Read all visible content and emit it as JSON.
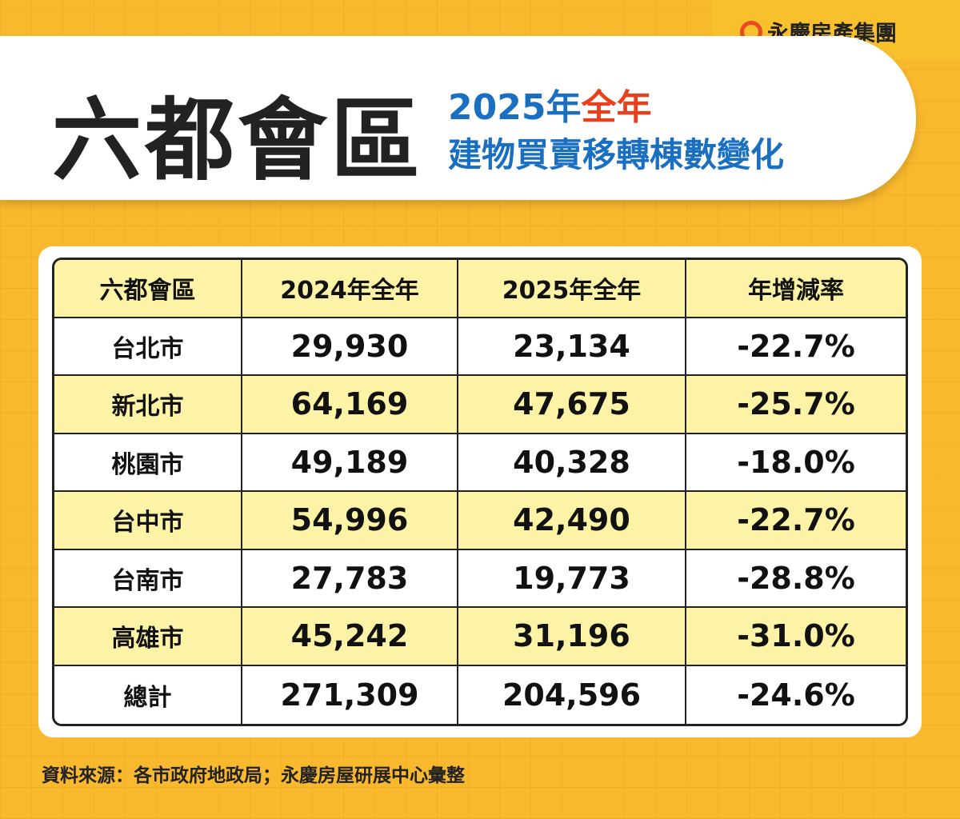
{
  "header": {
    "logo": "永慶房產集團",
    "title": "六都會區",
    "subtitle_year": "2025年",
    "subtitle_highlight": "全年",
    "subtitle_line2": "建物買賣移轉棟數變化"
  },
  "table": {
    "columns": [
      "六都會區",
      "2024年全年",
      "2025年全年",
      "年增減率"
    ],
    "rows": [
      [
        "台北市",
        "29,930",
        "23,134",
        "-22.7%"
      ],
      [
        "新北市",
        "64,169",
        "47,675",
        "-25.7%"
      ],
      [
        "桃園市",
        "49,189",
        "40,328",
        "-18.0%"
      ],
      [
        "台中市",
        "54,996",
        "42,490",
        "-22.7%"
      ],
      [
        "台南市",
        "27,783",
        "19,773",
        "-28.8%"
      ],
      [
        "高雄市",
        "45,242",
        "31,196",
        "-31.0%"
      ],
      [
        "總計",
        "271,309",
        "204,596",
        "-24.6%"
      ]
    ]
  },
  "footer": {
    "source": "資料來源：各市政府地政局；永慶房屋研展中心彙整"
  }
}
